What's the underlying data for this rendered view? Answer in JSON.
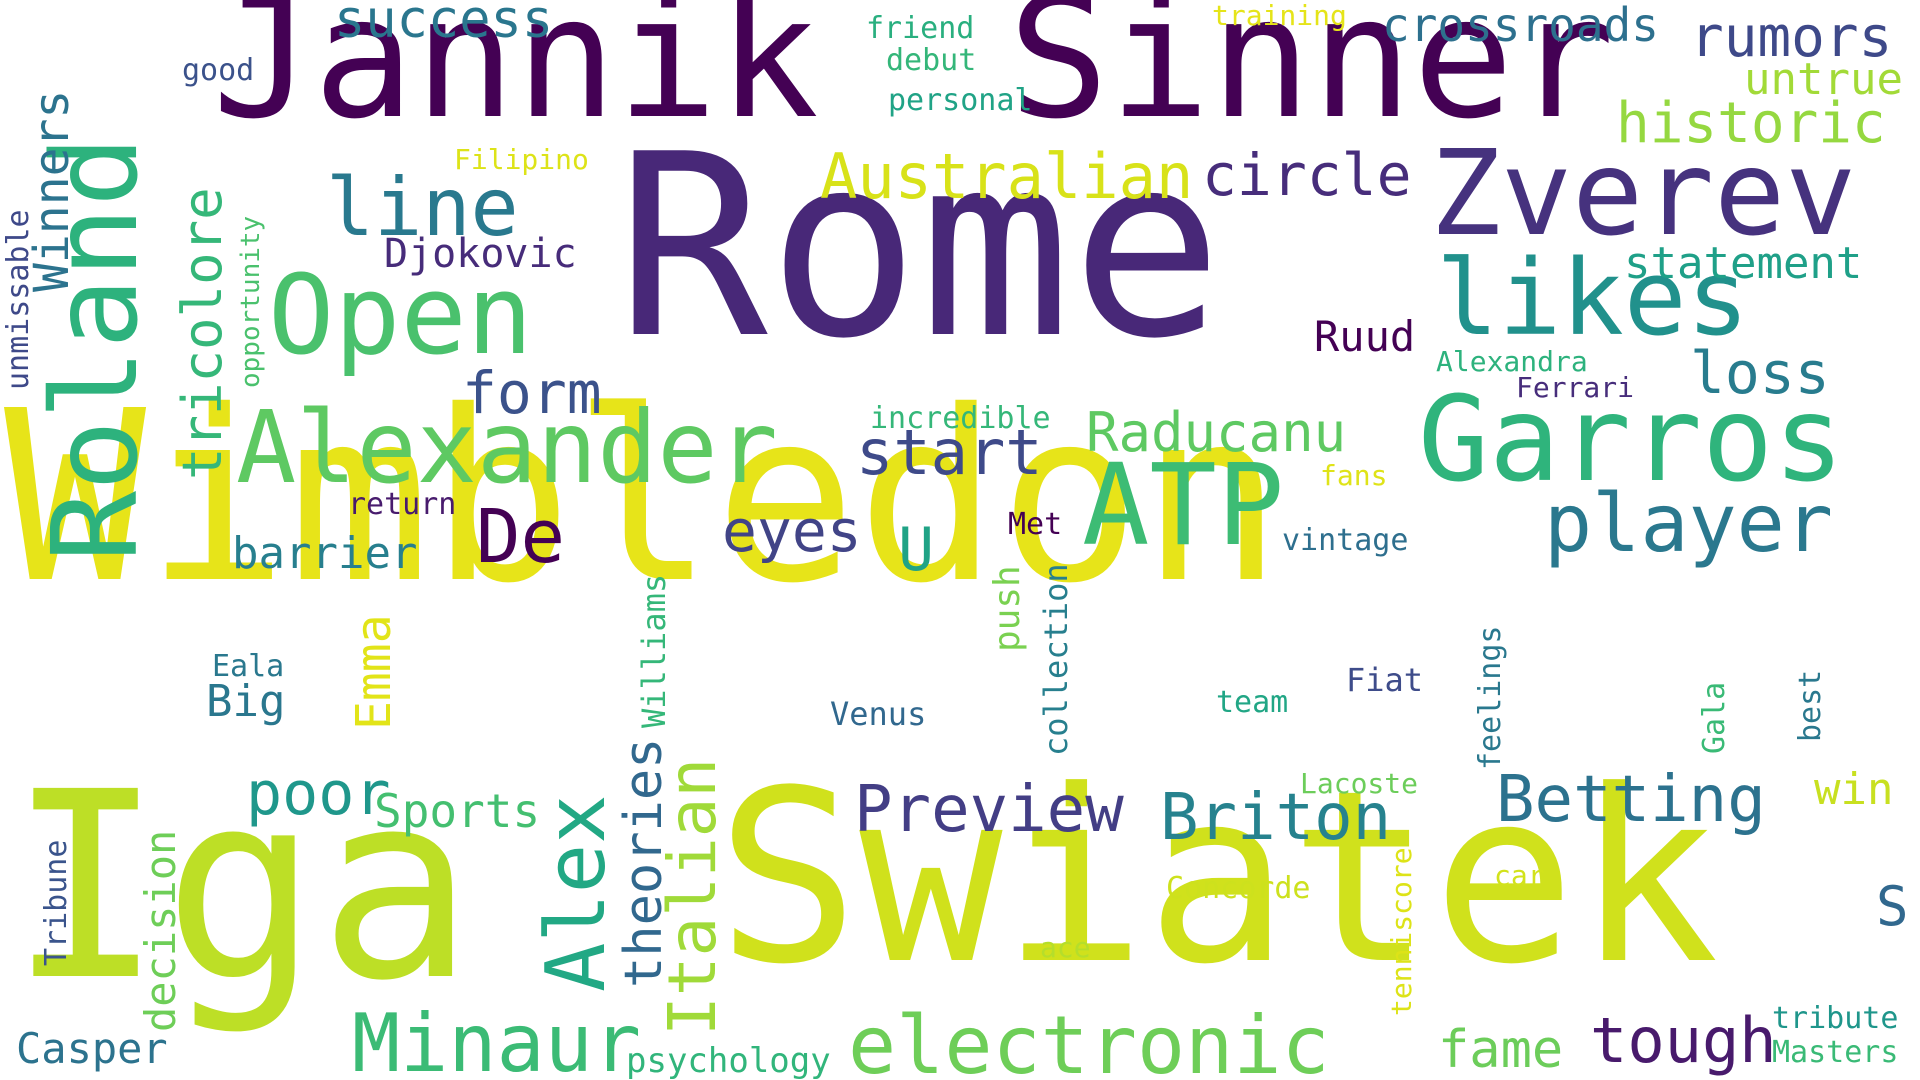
{
  "words": [
    {
      "text": "Wimbledon",
      "color": "#e7e419"
    },
    {
      "text": "Rome",
      "color": "#482878"
    },
    {
      "text": "Iga",
      "color": "#bddf26"
    },
    {
      "text": "Swiatek",
      "color": "#d0e11c"
    },
    {
      "text": "Jannik",
      "color": "#440154"
    },
    {
      "text": "Sinner",
      "color": "#440154"
    },
    {
      "text": "Roland",
      "color": "#2db27d"
    },
    {
      "text": "Garros",
      "color": "#2fb47c"
    },
    {
      "text": "Alexander",
      "color": "#5ec962"
    },
    {
      "text": "Zverev",
      "color": "#46327e"
    },
    {
      "text": "Open",
      "color": "#4ac16d"
    },
    {
      "text": "ATP",
      "color": "#3dbc74"
    },
    {
      "text": "likes",
      "color": "#21918c"
    },
    {
      "text": "electronic",
      "color": "#6ece58"
    },
    {
      "text": "Alex",
      "color": "#22a884"
    },
    {
      "text": "Minaur",
      "color": "#3bbb75"
    },
    {
      "text": "Italian",
      "color": "#a0da39"
    },
    {
      "text": "Preview",
      "color": "#433e85"
    },
    {
      "text": "Briton",
      "color": "#26828e"
    },
    {
      "text": "Betting",
      "color": "#2c728e"
    },
    {
      "text": "player",
      "color": "#2a788e"
    },
    {
      "text": "tricolore",
      "color": "#35b779"
    },
    {
      "text": "line",
      "color": "#29798e"
    },
    {
      "text": "Australian",
      "color": "#d8e219"
    },
    {
      "text": "circle",
      "color": "#472d7b"
    },
    {
      "text": "historic",
      "color": "#95d840"
    },
    {
      "text": "rumors",
      "color": "#3e4989"
    },
    {
      "text": "success",
      "color": "#2a768e"
    },
    {
      "text": "crossroads",
      "color": "#2d708e"
    },
    {
      "text": "De",
      "color": "#440154"
    },
    {
      "text": "Raducanu",
      "color": "#5ec962"
    },
    {
      "text": "form",
      "color": "#3b528b"
    },
    {
      "text": "start",
      "color": "#3e4a89"
    },
    {
      "text": "eyes",
      "color": "#414487"
    },
    {
      "text": "U",
      "color": "#20a386"
    },
    {
      "text": "poor",
      "color": "#1f978b"
    },
    {
      "text": "Sports",
      "color": "#44bf70"
    },
    {
      "text": "theories",
      "color": "#31688e"
    },
    {
      "text": "tough",
      "color": "#481a6c"
    },
    {
      "text": "fame",
      "color": "#6ccd5a"
    },
    {
      "text": "loss",
      "color": "#287c8e"
    },
    {
      "text": "statement",
      "color": "#1fa088"
    },
    {
      "text": "untrue",
      "color": "#a2da37"
    },
    {
      "text": "Winners",
      "color": "#2c738e"
    },
    {
      "text": "Emma",
      "color": "#e2e418"
    },
    {
      "text": "barrier",
      "color": "#277f8e"
    },
    {
      "text": "Big",
      "color": "#2a778e"
    },
    {
      "text": "decision",
      "color": "#6ece58"
    },
    {
      "text": "Casper",
      "color": "#2c738e"
    },
    {
      "text": "Djokovic",
      "color": "#472c7a"
    },
    {
      "text": "Ruud",
      "color": "#440154"
    },
    {
      "text": "win",
      "color": "#c8e020"
    },
    {
      "text": "S",
      "color": "#31688e"
    },
    {
      "text": "psychology",
      "color": "#31b57b"
    },
    {
      "text": "Williams",
      "color": "#35b779"
    },
    {
      "text": "collection",
      "color": "#277f8e"
    },
    {
      "text": "push",
      "color": "#7ad151"
    },
    {
      "text": "feelings",
      "color": "#2a788e"
    },
    {
      "text": "Gala",
      "color": "#3aba76"
    },
    {
      "text": "best",
      "color": "#2a788e"
    },
    {
      "text": "Tribune",
      "color": "#3a548c"
    },
    {
      "text": "tenniscore",
      "color": "#dde318"
    },
    {
      "text": "tribute",
      "color": "#1f968b"
    },
    {
      "text": "Masters",
      "color": "#3aba76"
    },
    {
      "text": "Concorde",
      "color": "#cde11d"
    },
    {
      "text": "ace",
      "color": "#b5de2b"
    },
    {
      "text": "car",
      "color": "#d2e21b"
    },
    {
      "text": "Lacoste",
      "color": "#6ccd5a"
    },
    {
      "text": "Fiat",
      "color": "#3e4c8a"
    },
    {
      "text": "team",
      "color": "#21a685"
    },
    {
      "text": "Venus",
      "color": "#31688e"
    },
    {
      "text": "Eala",
      "color": "#2a788e"
    },
    {
      "text": "Met",
      "color": "#440154"
    },
    {
      "text": "vintage",
      "color": "#2e6f8e"
    },
    {
      "text": "fans",
      "color": "#dfe318"
    },
    {
      "text": "return",
      "color": "#481b6d"
    },
    {
      "text": "incredible",
      "color": "#35b779"
    },
    {
      "text": "Ferrari",
      "color": "#472d7b"
    },
    {
      "text": "Alexandra",
      "color": "#2db27d"
    },
    {
      "text": "Filipino",
      "color": "#dde318"
    },
    {
      "text": "opportunity",
      "color": "#4ac16d"
    },
    {
      "text": "unmissable",
      "color": "#3e4989"
    },
    {
      "text": "good",
      "color": "#3b528b"
    },
    {
      "text": "friend",
      "color": "#29af7f"
    },
    {
      "text": "debut",
      "color": "#34b679"
    },
    {
      "text": "personal",
      "color": "#20a386"
    },
    {
      "text": "training",
      "color": "#e5e419"
    }
  ]
}
